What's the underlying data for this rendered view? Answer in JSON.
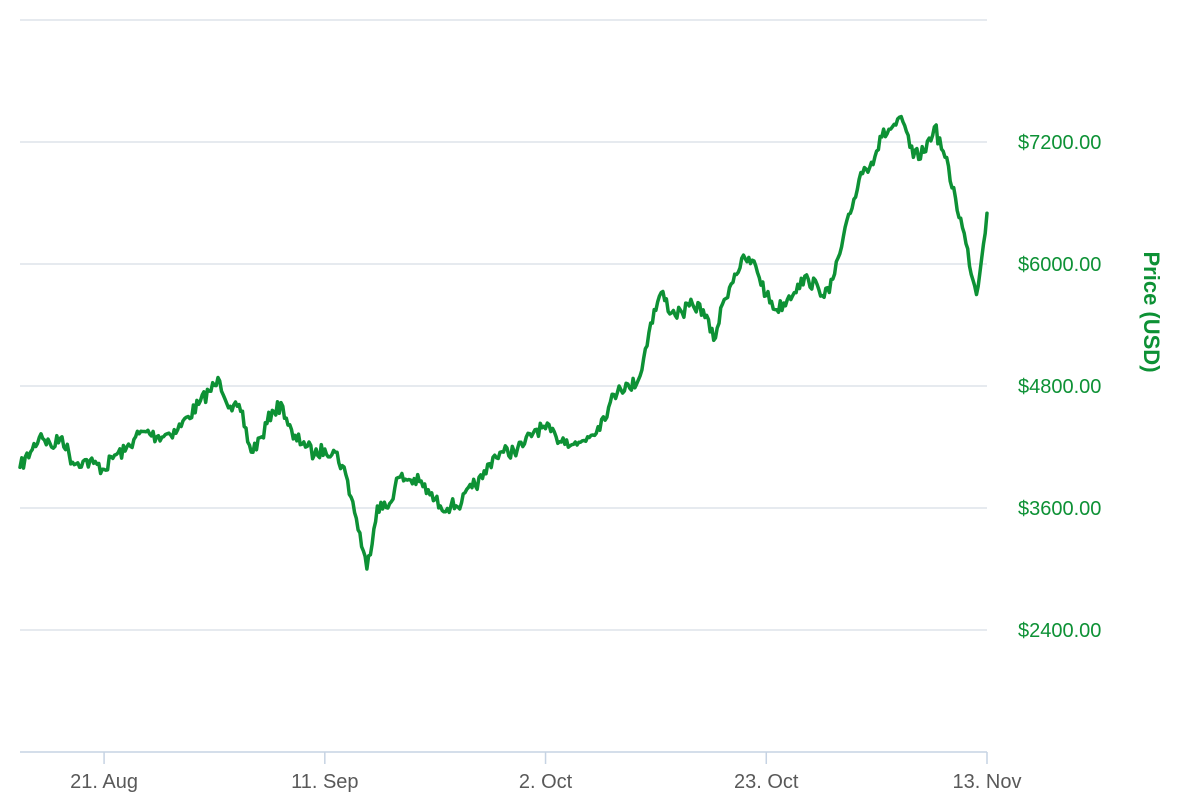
{
  "chart_data": {
    "type": "line",
    "ylabel": "Price (USD)",
    "ylim": [
      1200,
      8400
    ],
    "y_ticks": [
      "$2400.00",
      "$3600.00",
      "$4800.00",
      "$6000.00",
      "$7200.00"
    ],
    "y_tick_values": [
      2400,
      3600,
      4800,
      6000,
      7200
    ],
    "x_ticks": [
      "21. Aug",
      "11. Sep",
      "2. Oct",
      "23. Oct",
      "13. Nov"
    ],
    "x_tick_dates": [
      "2017-08-21",
      "2017-09-11",
      "2017-10-02",
      "2017-10-23",
      "2017-11-13"
    ],
    "xlim": [
      "2017-08-13",
      "2017-11-13"
    ],
    "grid": true,
    "line_color": "#0d9135",
    "series": [
      {
        "x": [
          "2017-08-13",
          "2017-08-14",
          "2017-08-15",
          "2017-08-16",
          "2017-08-17",
          "2017-08-18",
          "2017-08-19",
          "2017-08-20",
          "2017-08-21",
          "2017-08-22",
          "2017-08-23",
          "2017-08-24",
          "2017-08-25",
          "2017-08-26",
          "2017-08-27",
          "2017-08-28",
          "2017-08-29",
          "2017-08-30",
          "2017-08-31",
          "2017-09-01",
          "2017-09-02",
          "2017-09-03",
          "2017-09-04",
          "2017-09-05",
          "2017-09-06",
          "2017-09-07",
          "2017-09-08",
          "2017-09-09",
          "2017-09-10",
          "2017-09-11",
          "2017-09-12",
          "2017-09-13",
          "2017-09-14",
          "2017-09-15",
          "2017-09-16",
          "2017-09-17",
          "2017-09-18",
          "2017-09-19",
          "2017-09-20",
          "2017-09-21",
          "2017-09-22",
          "2017-09-23",
          "2017-09-24",
          "2017-09-25",
          "2017-09-26",
          "2017-09-27",
          "2017-09-28",
          "2017-09-29",
          "2017-09-30",
          "2017-10-01",
          "2017-10-02",
          "2017-10-03",
          "2017-10-04",
          "2017-10-05",
          "2017-10-06",
          "2017-10-07",
          "2017-10-08",
          "2017-10-09",
          "2017-10-10",
          "2017-10-11",
          "2017-10-12",
          "2017-10-13",
          "2017-10-14",
          "2017-10-15",
          "2017-10-16",
          "2017-10-17",
          "2017-10-18",
          "2017-10-19",
          "2017-10-20",
          "2017-10-21",
          "2017-10-22",
          "2017-10-23",
          "2017-10-24",
          "2017-10-25",
          "2017-10-26",
          "2017-10-27",
          "2017-10-28",
          "2017-10-29",
          "2017-10-30",
          "2017-10-31",
          "2017-11-01",
          "2017-11-02",
          "2017-11-03",
          "2017-11-04",
          "2017-11-05",
          "2017-11-06",
          "2017-11-07",
          "2017-11-08",
          "2017-11-09",
          "2017-11-10",
          "2017-11-11",
          "2017-11-12",
          "2017-11-13"
        ],
        "values": [
          4000,
          4150,
          4330,
          4200,
          4300,
          4050,
          4060,
          4040,
          3980,
          4120,
          4160,
          4300,
          4350,
          4300,
          4330,
          4370,
          4500,
          4620,
          4750,
          4850,
          4600,
          4550,
          4150,
          4300,
          4560,
          4600,
          4280,
          4250,
          4120,
          4180,
          4150,
          3930,
          3500,
          3000,
          3620,
          3600,
          3900,
          3880,
          3860,
          3730,
          3620,
          3620,
          3650,
          3800,
          3890,
          4100,
          4150,
          4160,
          4230,
          4370,
          4380,
          4300,
          4270,
          4220,
          4300,
          4400,
          4590,
          4800,
          4780,
          4900,
          5420,
          5720,
          5520,
          5520,
          5600,
          5550,
          5250,
          5650,
          5900,
          6050,
          5980,
          5690,
          5550,
          5650,
          5800,
          5850,
          5750,
          5720,
          6100,
          6500,
          6900,
          7000,
          7250,
          7350,
          7400,
          7050,
          7100,
          7350,
          7050,
          6650,
          6200,
          5700,
          6500
        ]
      }
    ]
  }
}
